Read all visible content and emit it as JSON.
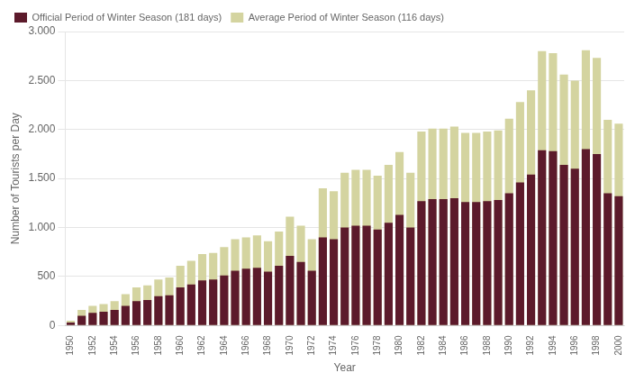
{
  "chart_data": {
    "type": "bar",
    "xlabel": "Year",
    "ylabel": "Number of Tourists per Day",
    "categories": [
      "1950",
      null,
      "1952",
      null,
      "1954",
      null,
      "1956",
      null,
      "1958",
      null,
      "1960",
      null,
      "1962",
      null,
      "1964",
      null,
      "1966",
      null,
      "1968",
      null,
      "1970",
      null,
      "1972",
      null,
      "1974",
      null,
      "1976",
      null,
      "1978",
      null,
      "1980",
      null,
      "1982",
      null,
      "1984",
      null,
      "1986",
      null,
      "1988",
      null,
      "1990",
      null,
      "1992",
      null,
      "1994",
      null,
      "1996",
      null,
      "1998",
      null,
      "2000"
    ],
    "series": [
      {
        "name": "Official Period of Winter Season (181 days)",
        "color": "#5c1a2b",
        "values": [
          30,
          100,
          130,
          140,
          160,
          200,
          250,
          260,
          300,
          310,
          390,
          420,
          460,
          470,
          510,
          560,
          580,
          590,
          550,
          610,
          710,
          650,
          560,
          900,
          880,
          1000,
          1020,
          1020,
          980,
          1050,
          1130,
          1000,
          1270,
          1290,
          1290,
          1300,
          1260,
          1260,
          1270,
          1280,
          1350,
          1460,
          1540,
          1790,
          1780,
          1640,
          1600,
          1800,
          1750,
          1350,
          1320
        ]
      },
      {
        "name": "Average Period of Winter Season (116 days)",
        "color": "#d4d4a0",
        "values": [
          50,
          160,
          200,
          220,
          250,
          320,
          390,
          410,
          470,
          490,
          610,
          660,
          730,
          740,
          800,
          880,
          900,
          920,
          860,
          960,
          1110,
          1020,
          880,
          1400,
          1370,
          1560,
          1590,
          1590,
          1530,
          1640,
          1770,
          1560,
          1980,
          2010,
          2010,
          2030,
          1965,
          1965,
          1980,
          1990,
          2110,
          2280,
          2400,
          2800,
          2780,
          2560,
          2500,
          2810,
          2730,
          2100,
          2060
        ]
      }
    ],
    "ylim": [
      0,
      3000
    ],
    "yticks": [
      0,
      500,
      {
        "value": 1000,
        "label": "1.000"
      },
      {
        "value": 1500,
        "label": "1.500"
      },
      {
        "value": 2000,
        "label": "2.000"
      },
      {
        "value": 2500,
        "label": "2.500"
      },
      {
        "value": 3000,
        "label": "3.000"
      }
    ],
    "grid": true,
    "legend": "upper left"
  }
}
